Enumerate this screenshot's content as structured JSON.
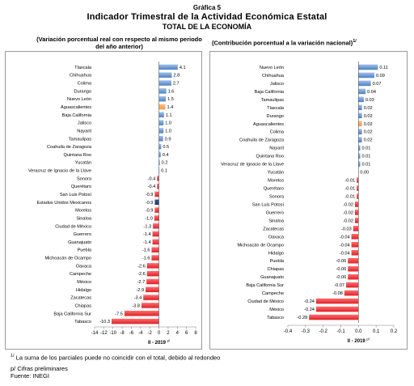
{
  "header": {
    "figure_label": "Gráfica 5",
    "title": "Indicador Trimestral de la Actividad Económica Estatal",
    "subtitle": "TOTAL DE LA ECONOMÍA"
  },
  "panels": {
    "left_subtitle": "(Variación porcentual real con respecto al mismo periodo del año anterior)",
    "right_subtitle": "(Contribución porcentual a la variación nacional)",
    "right_subtitle_note": "1/"
  },
  "footer": {
    "note_mark": "1/",
    "note1": "La suma de los parciales puede no coincidir con el total, debido al redondeo",
    "note2": "p/ Cifras preliminares",
    "source": "Fuente: INEGI"
  },
  "colors": {
    "positive": "#4f81bd",
    "negative": "#e01f26",
    "national": "#1f3864",
    "aguascalientes": "#f79646"
  },
  "chart_data": [
    {
      "type": "bar",
      "orientation": "horizontal",
      "xlabel": "II - 2019",
      "xlabel_suffix": "p/",
      "xlim": [
        -14,
        8
      ],
      "xticks": [
        -14,
        -12,
        -10,
        -8,
        -6,
        -4,
        -2,
        0,
        2,
        4,
        6,
        8
      ],
      "categories": [
        "Tlaxcala",
        "Chihuahua",
        "Colima",
        "Durango",
        "Nuevo León",
        "Aguascalientes",
        "Baja California",
        "Jalisco",
        "Nayarit",
        "Tamaulipas",
        "Coahuila de Zaragoza",
        "Quintana Roo",
        "Yucatán",
        "Veracruz de Ignacio de la Llave",
        "Sonora",
        "Querétaro",
        "San Luis Potosí",
        "Estados Unidos Mexicanos",
        "Morelos",
        "Sinaloa",
        "Ciudad de México",
        "Guerrero",
        "Guanajuato",
        "Puebla",
        "Michoacán de Ocampo",
        "Oaxaca",
        "Campeche",
        "México",
        "Hidalgo",
        "Zacatecas",
        "Chiapas",
        "Baja California Sur",
        "Tabasco"
      ],
      "values": [
        4.1,
        2.8,
        2.7,
        1.6,
        1.5,
        1.4,
        1.1,
        1.0,
        1.0,
        0.9,
        0.5,
        0.4,
        0.2,
        0.1,
        -0.4,
        -0.4,
        -0.9,
        -0.9,
        -0.9,
        -1.0,
        -1.3,
        -1.4,
        -1.4,
        -1.6,
        -1.6,
        -2.6,
        -2.6,
        -2.7,
        -2.9,
        -3.4,
        -3.8,
        -7.5,
        -10.3
      ],
      "labels": [
        "4.1",
        "2.8",
        "2.7",
        "1.6",
        "1.5",
        "1.4",
        "1.1",
        "1.0",
        "1.0",
        "0.9",
        "0.5",
        "0.4",
        "0.2",
        "0.1",
        "-0.4",
        "-0.4",
        "-0.9",
        "-0.9",
        "-0.9",
        "-1.0",
        "-1.3",
        "-1.4",
        "-1.4",
        "-1.6",
        "-1.6",
        "-2.6",
        "-2.6",
        "-2.7",
        "-2.9",
        "-3.4",
        "-3.8",
        "-7.5",
        "-10.3"
      ],
      "highlight": {
        "Aguascalientes": "aguascalientes",
        "Estados Unidos Mexicanos": "national"
      }
    },
    {
      "type": "bar",
      "orientation": "horizontal",
      "xlabel": "II - 2019",
      "xlabel_suffix": "p/",
      "xlim": [
        -0.4,
        0.2
      ],
      "xticks": [
        -0.4,
        -0.3,
        -0.2,
        -0.1,
        0,
        0.1,
        0.2
      ],
      "tick_labels": [
        "-0.4",
        "-0.3",
        "-0.2",
        "-0.1",
        "0.0",
        "0.1",
        "0.2"
      ],
      "categories": [
        "Nuevo León",
        "Chihuahua",
        "Jalisco",
        "Baja California",
        "Tamaulipas",
        "Tlaxcala",
        "Durango",
        "Aguascalientes",
        "Colima",
        "Coahuila de Zaragoza",
        "Nayarit",
        "Quintana Roo",
        "Veracruz de Ignacio de la Llave",
        "Yucatán",
        "Morelos",
        "Querétaro",
        "Sonora",
        "San Luis Potosí",
        "Guerrero",
        "Sinaloa",
        "Zacatecas",
        "Oaxaca",
        "Michoacán de Ocampo",
        "Hidalgo",
        "Puebla",
        "Chiapas",
        "Guanajuato",
        "Baja California Sur",
        "Campeche",
        "Ciudad de México",
        "México",
        "Tabasco"
      ],
      "values": [
        0.11,
        0.09,
        0.07,
        0.04,
        0.03,
        0.02,
        0.02,
        0.02,
        0.02,
        0.02,
        0.01,
        0.01,
        0.01,
        0.0,
        -0.01,
        -0.01,
        -0.01,
        -0.02,
        -0.02,
        -0.02,
        -0.03,
        -0.04,
        -0.04,
        -0.04,
        -0.06,
        -0.06,
        -0.06,
        -0.07,
        -0.08,
        -0.24,
        -0.24,
        -0.28
      ],
      "labels": [
        "0.11",
        "0.09",
        "0.07",
        "0.04",
        "0.03",
        "0.02",
        "0.02",
        "0.02",
        "0.02",
        "0.02",
        "0.01",
        "0.01",
        "0.01",
        "0.00",
        "-0.01",
        "-0.01",
        "-0.01",
        "-0.02",
        "-0.02",
        "-0.02",
        "-0.03",
        "-0.04",
        "-0.04",
        "-0.04",
        "-0.06",
        "-0.06",
        "-0.06",
        "-0.07",
        "-0.08",
        "-0.24",
        "-0.24",
        "-0.28"
      ],
      "highlight": {
        "Aguascalientes": "aguascalientes"
      }
    }
  ]
}
